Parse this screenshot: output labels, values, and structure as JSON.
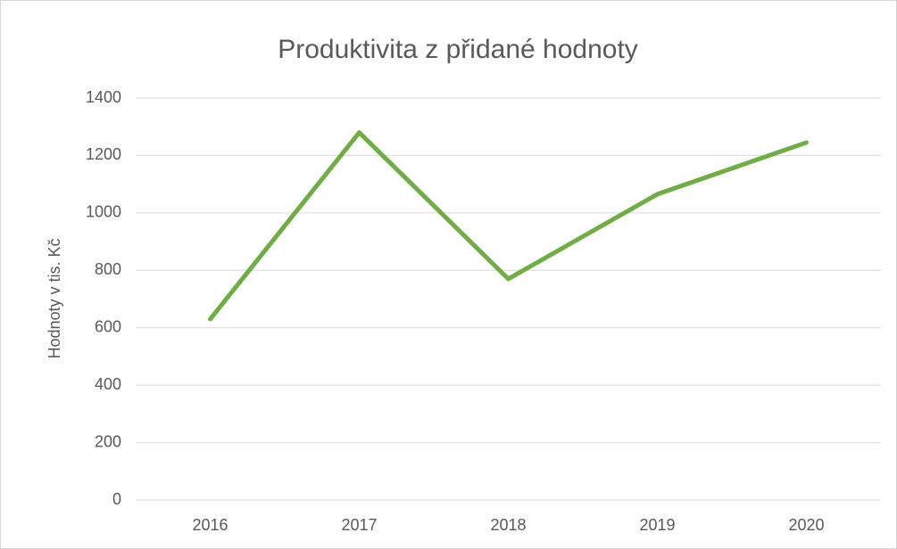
{
  "chart_data": {
    "type": "line",
    "title": "Produktivita z přidané hodnoty",
    "y_label": "Hodnoty v tis. Kč",
    "categories": [
      "2016",
      "2017",
      "2018",
      "2019",
      "2020"
    ],
    "values": [
      630,
      1280,
      770,
      1065,
      1245
    ],
    "color": "#70ad47",
    "ylim": [
      0,
      1400
    ],
    "yticks": [
      0,
      200,
      400,
      600,
      800,
      1000,
      1200,
      1400
    ],
    "grid": true
  }
}
